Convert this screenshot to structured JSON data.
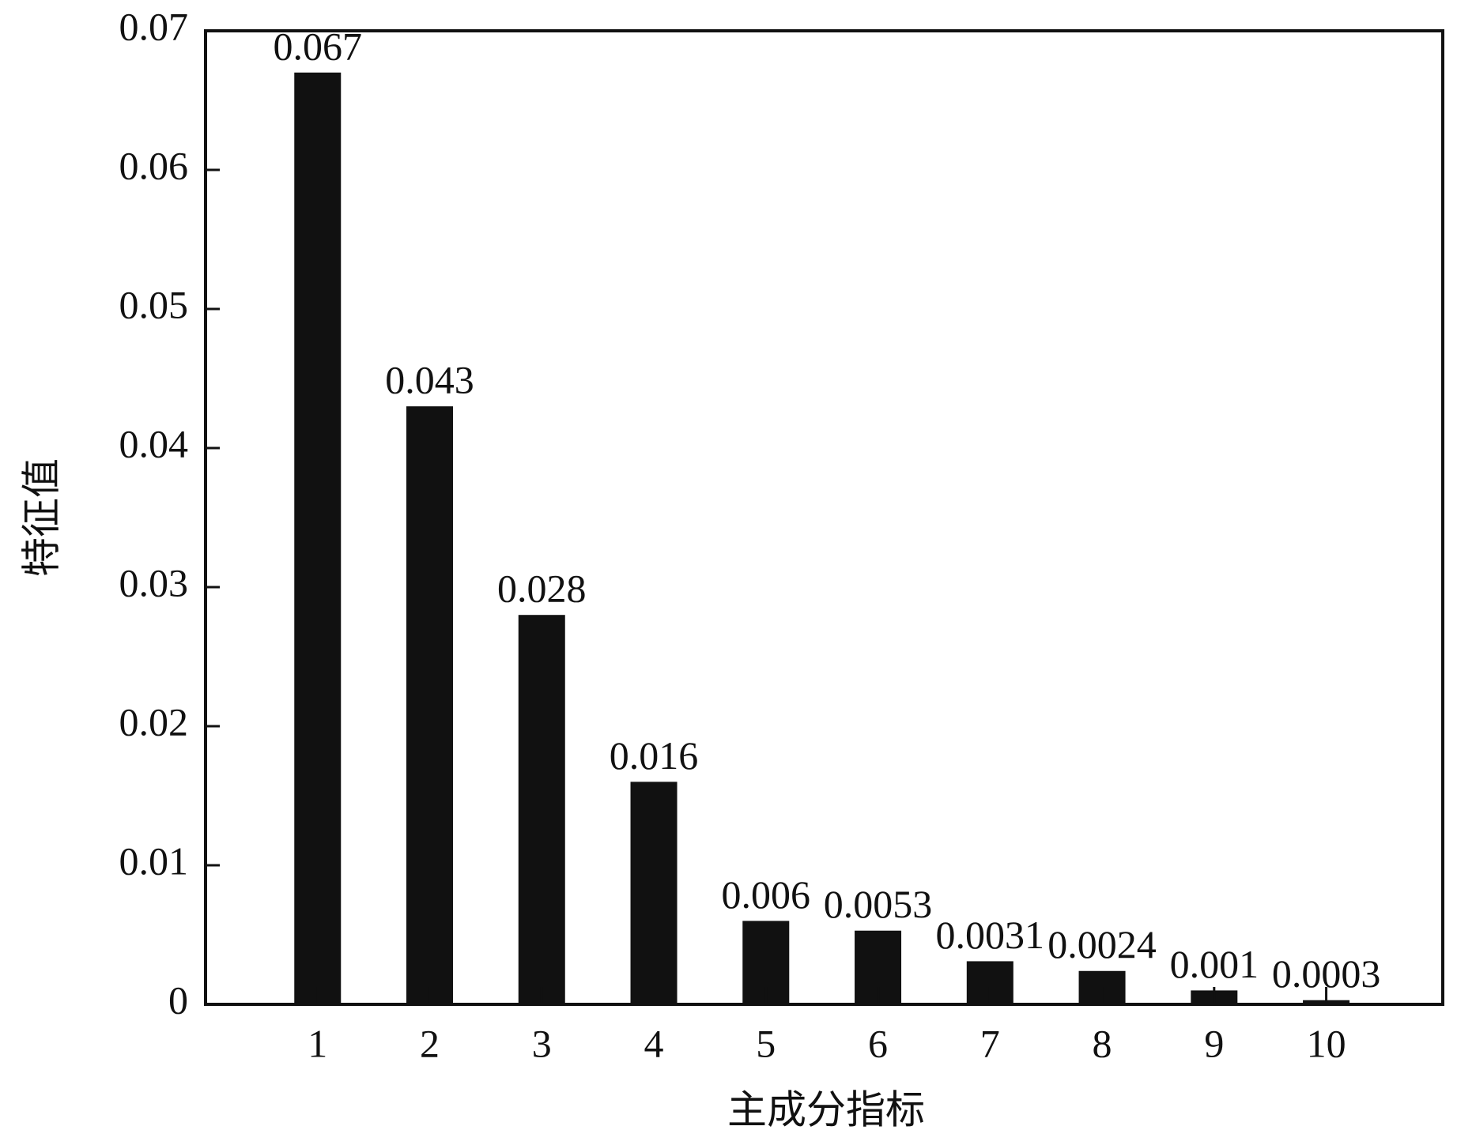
{
  "chart_data": {
    "type": "bar",
    "x_label": "主成分指标",
    "y_label": "特征值",
    "categories": [
      "1",
      "2",
      "3",
      "4",
      "5",
      "6",
      "7",
      "8",
      "9",
      "10"
    ],
    "values": [
      0.067,
      0.043,
      0.028,
      0.016,
      0.006,
      0.0053,
      0.0031,
      0.0024,
      0.001,
      0.0003
    ],
    "color": "#111111",
    "ylim": [
      0,
      0.07
    ],
    "yticks": [
      0,
      0.01,
      0.02,
      0.03,
      0.04,
      0.05,
      0.06,
      0.07
    ],
    "grid": false
  }
}
